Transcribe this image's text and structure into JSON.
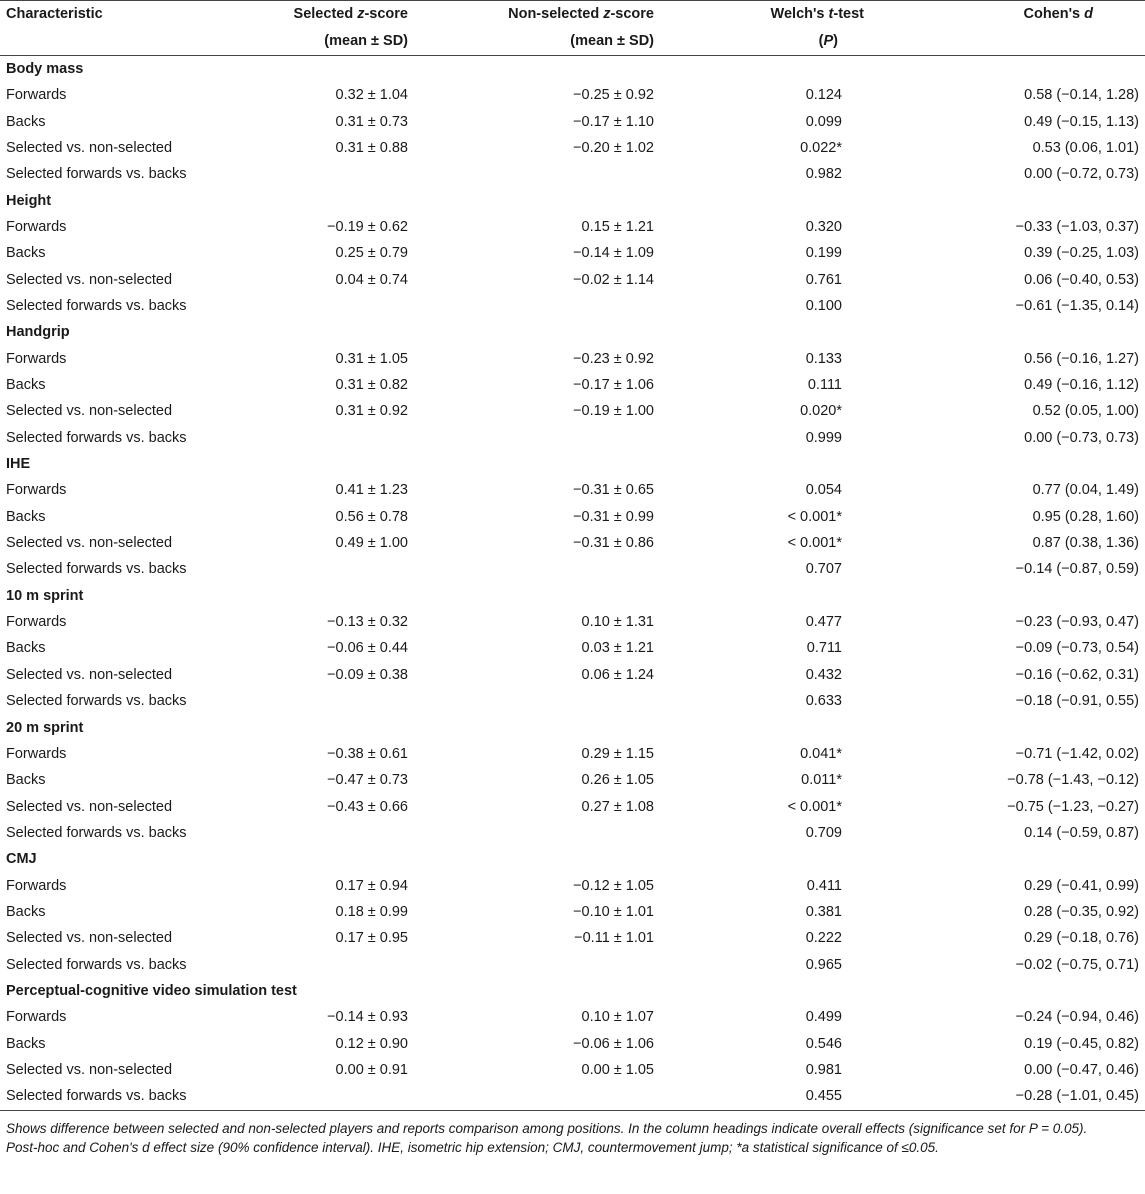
{
  "header": {
    "characteristic": "Characteristic",
    "selected_pre": "Selected ",
    "selected_z": "z",
    "selected_post": "-score",
    "selected_sub": "(mean ± SD)",
    "nonselected_pre": "Non-selected ",
    "nonselected_z": "z",
    "nonselected_post": "-score",
    "nonselected_sub": "(mean ± SD)",
    "welch_pre": "Welch's ",
    "welch_t": "t",
    "welch_post": "-test",
    "welch_sub_open": "(",
    "welch_sub_p": "P",
    "welch_sub_close": ")",
    "cohen_pre": "Cohen's ",
    "cohen_d": "d"
  },
  "groups": [
    {
      "title": "Body mass",
      "rows": [
        {
          "label": "Forwards",
          "selected": "0.32 ± 1.04",
          "nonselected": "−0.25 ± 0.92",
          "p": "0.124",
          "d": "0.58 (−0.14, 1.28)"
        },
        {
          "label": "Backs",
          "selected": "0.31 ± 0.73",
          "nonselected": "−0.17 ± 1.10",
          "p": "0.099",
          "d": "0.49 (−0.15, 1.13)"
        },
        {
          "label": "Selected vs. non-selected",
          "selected": "0.31 ± 0.88",
          "nonselected": "−0.20 ± 1.02",
          "p": "0.022*",
          "d": "0.53 (0.06, 1.01)"
        },
        {
          "label": "Selected forwards vs. backs",
          "selected": "",
          "nonselected": "",
          "p": "0.982",
          "d": "0.00 (−0.72, 0.73)"
        }
      ]
    },
    {
      "title": "Height",
      "rows": [
        {
          "label": "Forwards",
          "selected": "−0.19 ± 0.62",
          "nonselected": "0.15 ± 1.21",
          "p": "0.320",
          "d": "−0.33 (−1.03, 0.37)"
        },
        {
          "label": "Backs",
          "selected": "0.25 ± 0.79",
          "nonselected": "−0.14 ± 1.09",
          "p": "0.199",
          "d": "0.39 (−0.25, 1.03)"
        },
        {
          "label": "Selected vs. non-selected",
          "selected": "0.04 ± 0.74",
          "nonselected": "−0.02 ± 1.14",
          "p": "0.761",
          "d": "0.06 (−0.40, 0.53)"
        },
        {
          "label": "Selected forwards vs. backs",
          "selected": "",
          "nonselected": "",
          "p": "0.100",
          "d": "−0.61 (−1.35, 0.14)"
        }
      ]
    },
    {
      "title": "Handgrip",
      "rows": [
        {
          "label": "Forwards",
          "selected": "0.31 ± 1.05",
          "nonselected": "−0.23 ± 0.92",
          "p": "0.133",
          "d": "0.56 (−0.16, 1.27)"
        },
        {
          "label": "Backs",
          "selected": "0.31 ± 0.82",
          "nonselected": "−0.17 ± 1.06",
          "p": "0.111",
          "d": "0.49 (−0.16, 1.12)"
        },
        {
          "label": "Selected vs. non-selected",
          "selected": "0.31 ± 0.92",
          "nonselected": "−0.19 ± 1.00",
          "p": "0.020*",
          "d": "0.52 (0.05, 1.00)"
        },
        {
          "label": "Selected forwards vs. backs",
          "selected": "",
          "nonselected": "",
          "p": "0.999",
          "d": "0.00 (−0.73, 0.73)"
        }
      ]
    },
    {
      "title": "IHE",
      "rows": [
        {
          "label": "Forwards",
          "selected": "0.41 ± 1.23",
          "nonselected": "−0.31 ± 0.65",
          "p": "0.054",
          "d": "0.77 (0.04, 1.49)"
        },
        {
          "label": "Backs",
          "selected": "0.56 ± 0.78",
          "nonselected": "−0.31 ± 0.99",
          "p": "< 0.001*",
          "d": "0.95 (0.28, 1.60)"
        },
        {
          "label": "Selected vs. non-selected",
          "selected": "0.49 ± 1.00",
          "nonselected": "−0.31 ± 0.86",
          "p": "< 0.001*",
          "d": "0.87 (0.38, 1.36)"
        },
        {
          "label": "Selected forwards vs. backs",
          "selected": "",
          "nonselected": "",
          "p": "0.707",
          "d": "−0.14 (−0.87, 0.59)"
        }
      ]
    },
    {
      "title": "10 m sprint",
      "rows": [
        {
          "label": "Forwards",
          "selected": "−0.13 ± 0.32",
          "nonselected": "0.10 ± 1.31",
          "p": "0.477",
          "d": "−0.23 (−0.93, 0.47)"
        },
        {
          "label": "Backs",
          "selected": "−0.06 ± 0.44",
          "nonselected": "0.03 ± 1.21",
          "p": "0.711",
          "d": "−0.09 (−0.73, 0.54)"
        },
        {
          "label": "Selected vs. non-selected",
          "selected": "−0.09 ± 0.38",
          "nonselected": "0.06 ± 1.24",
          "p": "0.432",
          "d": "−0.16 (−0.62, 0.31)"
        },
        {
          "label": "Selected forwards vs. backs",
          "selected": "",
          "nonselected": "",
          "p": "0.633",
          "d": "−0.18 (−0.91, 0.55)"
        }
      ]
    },
    {
      "title": "20 m sprint",
      "rows": [
        {
          "label": "Forwards",
          "selected": "−0.38 ± 0.61",
          "nonselected": "0.29 ± 1.15",
          "p": "0.041*",
          "d": "−0.71 (−1.42, 0.02)"
        },
        {
          "label": "Backs",
          "selected": "−0.47 ± 0.73",
          "nonselected": "0.26 ± 1.05",
          "p": "0.011*",
          "d": "−0.78 (−1.43, −0.12)"
        },
        {
          "label": "Selected vs. non-selected",
          "selected": "−0.43 ± 0.66",
          "nonselected": "0.27 ± 1.08",
          "p": "< 0.001*",
          "d": "−0.75 (−1.23, −0.27)"
        },
        {
          "label": "Selected forwards vs. backs",
          "selected": "",
          "nonselected": "",
          "p": "0.709",
          "d": "0.14 (−0.59, 0.87)"
        }
      ]
    },
    {
      "title": "CMJ",
      "rows": [
        {
          "label": "Forwards",
          "selected": "0.17 ± 0.94",
          "nonselected": "−0.12 ± 1.05",
          "p": "0.411",
          "d": "0.29 (−0.41, 0.99)"
        },
        {
          "label": "Backs",
          "selected": "0.18 ± 0.99",
          "nonselected": "−0.10 ± 1.01",
          "p": "0.381",
          "d": "0.28 (−0.35, 0.92)"
        },
        {
          "label": "Selected vs. non-selected",
          "selected": "0.17 ± 0.95",
          "nonselected": "−0.11 ± 1.01",
          "p": "0.222",
          "d": "0.29 (−0.18, 0.76)"
        },
        {
          "label": "Selected forwards vs. backs",
          "selected": "",
          "nonselected": "",
          "p": "0.965",
          "d": "−0.02 (−0.75, 0.71)"
        }
      ]
    },
    {
      "title": "Perceptual-cognitive video simulation test",
      "rows": [
        {
          "label": "Forwards",
          "selected": "−0.14 ± 0.93",
          "nonselected": "0.10 ± 1.07",
          "p": "0.499",
          "d": "−0.24 (−0.94, 0.46)"
        },
        {
          "label": "Backs",
          "selected": "0.12 ± 0.90",
          "nonselected": "−0.06 ± 1.06",
          "p": "0.546",
          "d": "0.19 (−0.45, 0.82)"
        },
        {
          "label": "Selected vs. non-selected",
          "selected": "0.00 ± 0.91",
          "nonselected": "0.00 ± 1.05",
          "p": "0.981",
          "d": "0.00 (−0.47, 0.46)"
        },
        {
          "label": "Selected forwards vs. backs",
          "selected": "",
          "nonselected": "",
          "p": "0.455",
          "d": "−0.28 (−1.01, 0.45)"
        }
      ]
    }
  ],
  "caption": {
    "line1": "Shows difference between selected and non-selected players and reports comparison among positions. In the column headings indicate overall effects (significance set for P = 0.05).",
    "line2": "Post-hoc and Cohen's d effect size (90% confidence interval). IHE, isometric hip extension; CMJ, countermovement jump; *a statistical significance of ≤0.05."
  }
}
